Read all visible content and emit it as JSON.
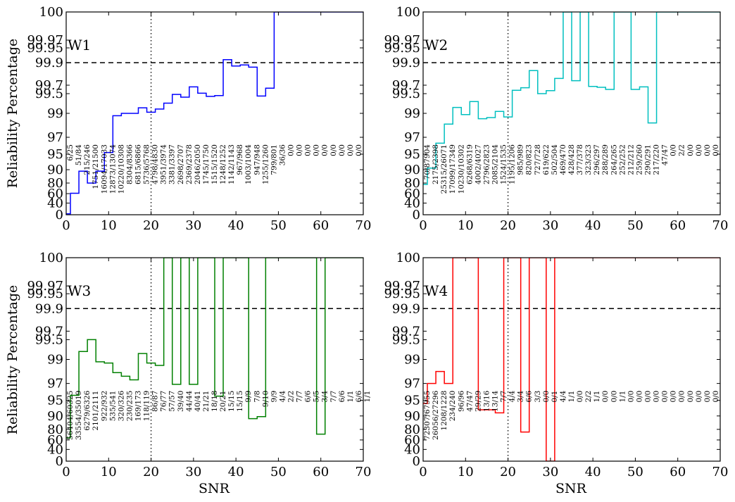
{
  "figure": {
    "ylabel": "Reliability Percentage",
    "xlabel": "SNR"
  },
  "chart_data": [
    {
      "type": "line",
      "panel": "W1",
      "color": "#0000ff",
      "xlim": [
        0,
        70
      ],
      "y_ticks": [
        "0",
        "40",
        "60",
        "80",
        "90",
        "95",
        "97",
        "99",
        "99.5",
        "99.7",
        "99.9",
        "99.95",
        "99.97",
        "100"
      ],
      "x_ticks": [
        "0",
        "10",
        "20",
        "30",
        "40",
        "50",
        "60",
        "70"
      ],
      "reference_y": 99.9,
      "reference_x": 20,
      "steps": [
        [
          0,
          3.3
        ],
        [
          1,
          60.7
        ],
        [
          3,
          88.9
        ],
        [
          5,
          80
        ],
        [
          7,
          88.9
        ],
        [
          9,
          95.2
        ],
        [
          11,
          98.8
        ],
        [
          13,
          99.0
        ],
        [
          17,
          99.14
        ],
        [
          19,
          99.03
        ],
        [
          21,
          99.11
        ],
        [
          23,
          99.26
        ],
        [
          25,
          99.48
        ],
        [
          27,
          99.41
        ],
        [
          29,
          99.66
        ],
        [
          31,
          99.51
        ],
        [
          33,
          99.43
        ],
        [
          35,
          99.45
        ],
        [
          37,
          99.91
        ],
        [
          39,
          99.87
        ],
        [
          41,
          99.88
        ],
        [
          43,
          99.86
        ],
        [
          45,
          99.44
        ],
        [
          47,
          99.63
        ],
        [
          49,
          100
        ],
        [
          69,
          100
        ]
      ],
      "counts": [
        {
          "x": 1,
          "text": "6/25"
        },
        {
          "x": 3,
          "text": "51/84"
        },
        {
          "x": 5,
          "text": "215/246"
        },
        {
          "x": 7,
          "text": "1751/21500"
        },
        {
          "x": 9,
          "text": "16094/17033"
        },
        {
          "x": 11,
          "text": "12873/13074"
        },
        {
          "x": 13,
          "text": "10220/10308"
        },
        {
          "x": 15,
          "text": "8304/8366"
        },
        {
          "x": 17,
          "text": "6815/6866"
        },
        {
          "x": 19,
          "text": "5736/5768"
        },
        {
          "x": 21,
          "text": "4798/4830"
        },
        {
          "x": 23,
          "text": "3951/3974"
        },
        {
          "x": 25,
          "text": "3381/3397"
        },
        {
          "x": 27,
          "text": "2698/2707"
        },
        {
          "x": 29,
          "text": "2369/2378"
        },
        {
          "x": 31,
          "text": "2046/2050"
        },
        {
          "x": 33,
          "text": "1745/1750"
        },
        {
          "x": 35,
          "text": "1515/1520"
        },
        {
          "x": 37,
          "text": "1248/1252"
        },
        {
          "x": 39,
          "text": "1142/1143"
        },
        {
          "x": 41,
          "text": "967/968"
        },
        {
          "x": 43,
          "text": "1003/1004"
        },
        {
          "x": 45,
          "text": "947/948"
        },
        {
          "x": 47,
          "text": "1255/1260"
        },
        {
          "x": 49,
          "text": "799/801"
        },
        {
          "x": 51,
          "text": "36/36"
        },
        {
          "x": 53,
          "text": "0/0"
        },
        {
          "x": 55,
          "text": "0/0"
        },
        {
          "x": 57,
          "text": "0/0"
        },
        {
          "x": 59,
          "text": "0/0"
        },
        {
          "x": 61,
          "text": "0/0"
        },
        {
          "x": 63,
          "text": "0/0"
        },
        {
          "x": 65,
          "text": "0/0"
        },
        {
          "x": 67,
          "text": "0/0"
        },
        {
          "x": 69,
          "text": "0/0"
        }
      ]
    },
    {
      "type": "line",
      "panel": "W2",
      "color": "#00bfbf",
      "xlim": [
        0,
        70
      ],
      "y_ticks": [
        "0",
        "40",
        "60",
        "80",
        "90",
        "95",
        "97",
        "99",
        "99.5",
        "99.7",
        "99.9",
        "99.95",
        "99.97",
        "100"
      ],
      "x_ticks": [
        "0",
        "10",
        "20",
        "30",
        "40",
        "50",
        "60",
        "70"
      ],
      "reference_y": 99.9,
      "reference_x": 20,
      "steps": [
        [
          0,
          77.5
        ],
        [
          1,
          90.5
        ],
        [
          3,
          96.3
        ],
        [
          5,
          98.1
        ],
        [
          7,
          99.15
        ],
        [
          9,
          98.9
        ],
        [
          11,
          99.3
        ],
        [
          13,
          98.55
        ],
        [
          15,
          98.65
        ],
        [
          17,
          99.05
        ],
        [
          19,
          98.7
        ],
        [
          21,
          99.58
        ],
        [
          23,
          99.64
        ],
        [
          25,
          99.83
        ],
        [
          27,
          99.5
        ],
        [
          29,
          99.57
        ],
        [
          31,
          99.76
        ],
        [
          33,
          100
        ],
        [
          35,
          99.74
        ],
        [
          37,
          100
        ],
        [
          39,
          99.67
        ],
        [
          41,
          99.65
        ],
        [
          43,
          99.6
        ],
        [
          45,
          100
        ],
        [
          49,
          99.6
        ],
        [
          51,
          99.66
        ],
        [
          53,
          98.2
        ],
        [
          55,
          100
        ],
        [
          69,
          100
        ]
      ],
      "counts": [
        {
          "x": 1,
          "text": "70/87904"
        },
        {
          "x": 3,
          "text": "2175/2398"
        },
        {
          "x": 5,
          "text": "25315/26071"
        },
        {
          "x": 7,
          "text": "17099/17349"
        },
        {
          "x": 9,
          "text": "10230/10302"
        },
        {
          "x": 11,
          "text": "6268/6319"
        },
        {
          "x": 13,
          "text": "4002/4027"
        },
        {
          "x": 15,
          "text": "2796/2823"
        },
        {
          "x": 17,
          "text": "2085/2104"
        },
        {
          "x": 19,
          "text": "1524/1535"
        },
        {
          "x": 21,
          "text": "1195/1206"
        },
        {
          "x": 23,
          "text": "985/989"
        },
        {
          "x": 25,
          "text": "820/823"
        },
        {
          "x": 27,
          "text": "727/728"
        },
        {
          "x": 29,
          "text": "619/622"
        },
        {
          "x": 31,
          "text": "502/504"
        },
        {
          "x": 33,
          "text": "469/470"
        },
        {
          "x": 35,
          "text": "428/428"
        },
        {
          "x": 37,
          "text": "377/378"
        },
        {
          "x": 39,
          "text": "323/323"
        },
        {
          "x": 41,
          "text": "296/297"
        },
        {
          "x": 43,
          "text": "288/289"
        },
        {
          "x": 45,
          "text": "264/265"
        },
        {
          "x": 47,
          "text": "252/252"
        },
        {
          "x": 49,
          "text": "212/212"
        },
        {
          "x": 51,
          "text": "259/260"
        },
        {
          "x": 53,
          "text": "290/291"
        },
        {
          "x": 55,
          "text": "217/220"
        },
        {
          "x": 57,
          "text": "47/47"
        },
        {
          "x": 59,
          "text": "0/0"
        },
        {
          "x": 61,
          "text": "2/2"
        },
        {
          "x": 63,
          "text": "0/0"
        },
        {
          "x": 65,
          "text": "0/0"
        },
        {
          "x": 67,
          "text": "0/0"
        },
        {
          "x": 69,
          "text": "0/0"
        }
      ]
    },
    {
      "type": "line",
      "panel": "W3",
      "color": "#008000",
      "xlim": [
        0,
        70
      ],
      "y_ticks": [
        "0",
        "40",
        "60",
        "80",
        "90",
        "95",
        "97",
        "99",
        "99.5",
        "99.7",
        "99.9",
        "99.95",
        "99.97",
        "100"
      ],
      "x_ticks": [
        "0",
        "10",
        "20",
        "30",
        "40",
        "50",
        "60",
        "70"
      ],
      "reference_y": 99.9,
      "reference_x": 20,
      "steps": [
        [
          0,
          64
        ],
        [
          1,
          95.6
        ],
        [
          3,
          99.2
        ],
        [
          5,
          99.5
        ],
        [
          7,
          98.8
        ],
        [
          9,
          98.7
        ],
        [
          11,
          97.9
        ],
        [
          13,
          97.6
        ],
        [
          15,
          97.3
        ],
        [
          17,
          99.15
        ],
        [
          19,
          98.7
        ],
        [
          21,
          98.5
        ],
        [
          23,
          100
        ],
        [
          25,
          96.9
        ],
        [
          27,
          100
        ],
        [
          29,
          96.9
        ],
        [
          31,
          100
        ],
        [
          35,
          95.5
        ],
        [
          37,
          100
        ],
        [
          43,
          88
        ],
        [
          45,
          89.5
        ],
        [
          47,
          100
        ],
        [
          59,
          71
        ],
        [
          61,
          100
        ],
        [
          69,
          100
        ]
      ],
      "counts": [
        {
          "x": 1,
          "text": "56404/60325"
        },
        {
          "x": 3,
          "text": "33554/35019"
        },
        {
          "x": 5,
          "text": "6279/6326"
        },
        {
          "x": 7,
          "text": "2101/2111"
        },
        {
          "x": 9,
          "text": "922/932"
        },
        {
          "x": 11,
          "text": "535/541"
        },
        {
          "x": 13,
          "text": "320/326"
        },
        {
          "x": 15,
          "text": "230/235"
        },
        {
          "x": 17,
          "text": "169/173"
        },
        {
          "x": 19,
          "text": "118/119"
        },
        {
          "x": 21,
          "text": "86/87"
        },
        {
          "x": 23,
          "text": "76/77"
        },
        {
          "x": 25,
          "text": "57/57"
        },
        {
          "x": 27,
          "text": "39/40"
        },
        {
          "x": 29,
          "text": "44/44"
        },
        {
          "x": 31,
          "text": "40/41"
        },
        {
          "x": 33,
          "text": "21/21"
        },
        {
          "x": 35,
          "text": "18/18"
        },
        {
          "x": 37,
          "text": "20/21"
        },
        {
          "x": 39,
          "text": "15/15"
        },
        {
          "x": 41,
          "text": "15/15"
        },
        {
          "x": 43,
          "text": "9/9"
        },
        {
          "x": 45,
          "text": "7/8"
        },
        {
          "x": 47,
          "text": "9/10"
        },
        {
          "x": 49,
          "text": "9/9"
        },
        {
          "x": 51,
          "text": "4/4"
        },
        {
          "x": 53,
          "text": "2/2"
        },
        {
          "x": 55,
          "text": "7/7"
        },
        {
          "x": 57,
          "text": "6/6"
        },
        {
          "x": 59,
          "text": "5/5"
        },
        {
          "x": 61,
          "text": "3/4"
        },
        {
          "x": 63,
          "text": "7/7"
        },
        {
          "x": 65,
          "text": "6/6"
        },
        {
          "x": 67,
          "text": "1/1"
        },
        {
          "x": 69,
          "text": "6/6"
        },
        {
          "x": 71,
          "text": "1/1"
        }
      ]
    },
    {
      "type": "line",
      "panel": "W4",
      "color": "#ff0000",
      "xlim": [
        0,
        70
      ],
      "y_ticks": [
        "0",
        "40",
        "60",
        "80",
        "90",
        "95",
        "97",
        "99",
        "99.5",
        "99.7",
        "99.9",
        "99.95",
        "99.97",
        "100"
      ],
      "x_ticks": [
        "0",
        "10",
        "20",
        "30",
        "40",
        "50",
        "60",
        "70"
      ],
      "reference_y": 99.9,
      "reference_x": 20,
      "steps": [
        [
          0,
          94
        ],
        [
          1,
          97
        ],
        [
          3,
          98
        ],
        [
          5,
          97
        ],
        [
          7,
          100
        ],
        [
          13,
          92
        ],
        [
          17,
          91
        ],
        [
          19,
          100
        ],
        [
          23,
          75
        ],
        [
          25,
          100
        ],
        [
          29,
          0
        ],
        [
          31,
          100
        ],
        [
          69,
          100
        ]
      ],
      "counts": [
        {
          "x": 1,
          "text": "72307/67955"
        },
        {
          "x": 3,
          "text": "26056/27296"
        },
        {
          "x": 5,
          "text": "1208/1228"
        },
        {
          "x": 7,
          "text": "234/240"
        },
        {
          "x": 9,
          "text": "96/96"
        },
        {
          "x": 11,
          "text": "47/47"
        },
        {
          "x": 13,
          "text": "29/29"
        },
        {
          "x": 15,
          "text": "13/16"
        },
        {
          "x": 17,
          "text": "13/14"
        },
        {
          "x": 19,
          "text": "7/7"
        },
        {
          "x": 21,
          "text": "4/4"
        },
        {
          "x": 23,
          "text": "3/4"
        },
        {
          "x": 25,
          "text": "6/6"
        },
        {
          "x": 27,
          "text": "3/3"
        },
        {
          "x": 29,
          "text": "0/0"
        },
        {
          "x": 31,
          "text": "0/1"
        },
        {
          "x": 33,
          "text": "4/4"
        },
        {
          "x": 35,
          "text": "1/1"
        },
        {
          "x": 37,
          "text": "0/0"
        },
        {
          "x": 39,
          "text": "2/2"
        },
        {
          "x": 41,
          "text": "1/1"
        },
        {
          "x": 43,
          "text": "0/0"
        },
        {
          "x": 45,
          "text": "0/0"
        },
        {
          "x": 47,
          "text": "1/1"
        },
        {
          "x": 49,
          "text": "0/0"
        },
        {
          "x": 51,
          "text": "0/0"
        },
        {
          "x": 53,
          "text": "0/0"
        },
        {
          "x": 55,
          "text": "0/0"
        },
        {
          "x": 57,
          "text": "0/0"
        },
        {
          "x": 59,
          "text": "0/0"
        },
        {
          "x": 61,
          "text": "0/0"
        },
        {
          "x": 63,
          "text": "0/0"
        },
        {
          "x": 65,
          "text": "0/0"
        },
        {
          "x": 67,
          "text": "0/0"
        },
        {
          "x": 69,
          "text": "0/0"
        }
      ]
    }
  ]
}
